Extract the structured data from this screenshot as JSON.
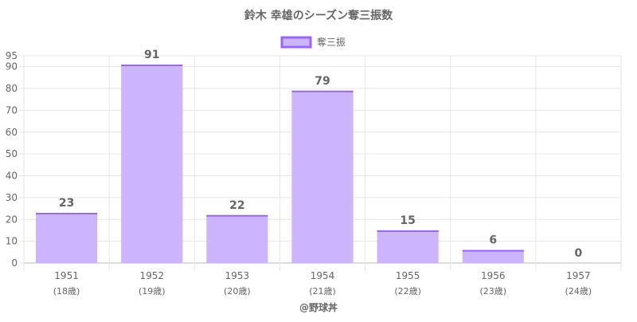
{
  "chart_data": {
    "type": "bar",
    "title": "鈴木 幸雄のシーズン奪三振数",
    "legend": {
      "position": "top",
      "label": "奪三振"
    },
    "categories": [
      "1951",
      "1952",
      "1953",
      "1954",
      "1955",
      "1956",
      "1957"
    ],
    "category_sublabels": [
      "(18歳)",
      "(19歳)",
      "(20歳)",
      "(21歳)",
      "(22歳)",
      "(23歳)",
      "(24歳)"
    ],
    "series": [
      {
        "name": "奪三振",
        "values": [
          23,
          91,
          22,
          79,
          15,
          6,
          0
        ]
      }
    ],
    "ylim": [
      0,
      95
    ],
    "yticks": [
      0,
      10,
      20,
      30,
      40,
      50,
      60,
      70,
      80,
      90,
      95
    ],
    "grid": true,
    "footer": "@野球丼",
    "colors": {
      "bar_fill": "#cdb4ff",
      "bar_border": "#9966ff",
      "text": "#666666",
      "grid": "#e6e6e6"
    }
  }
}
